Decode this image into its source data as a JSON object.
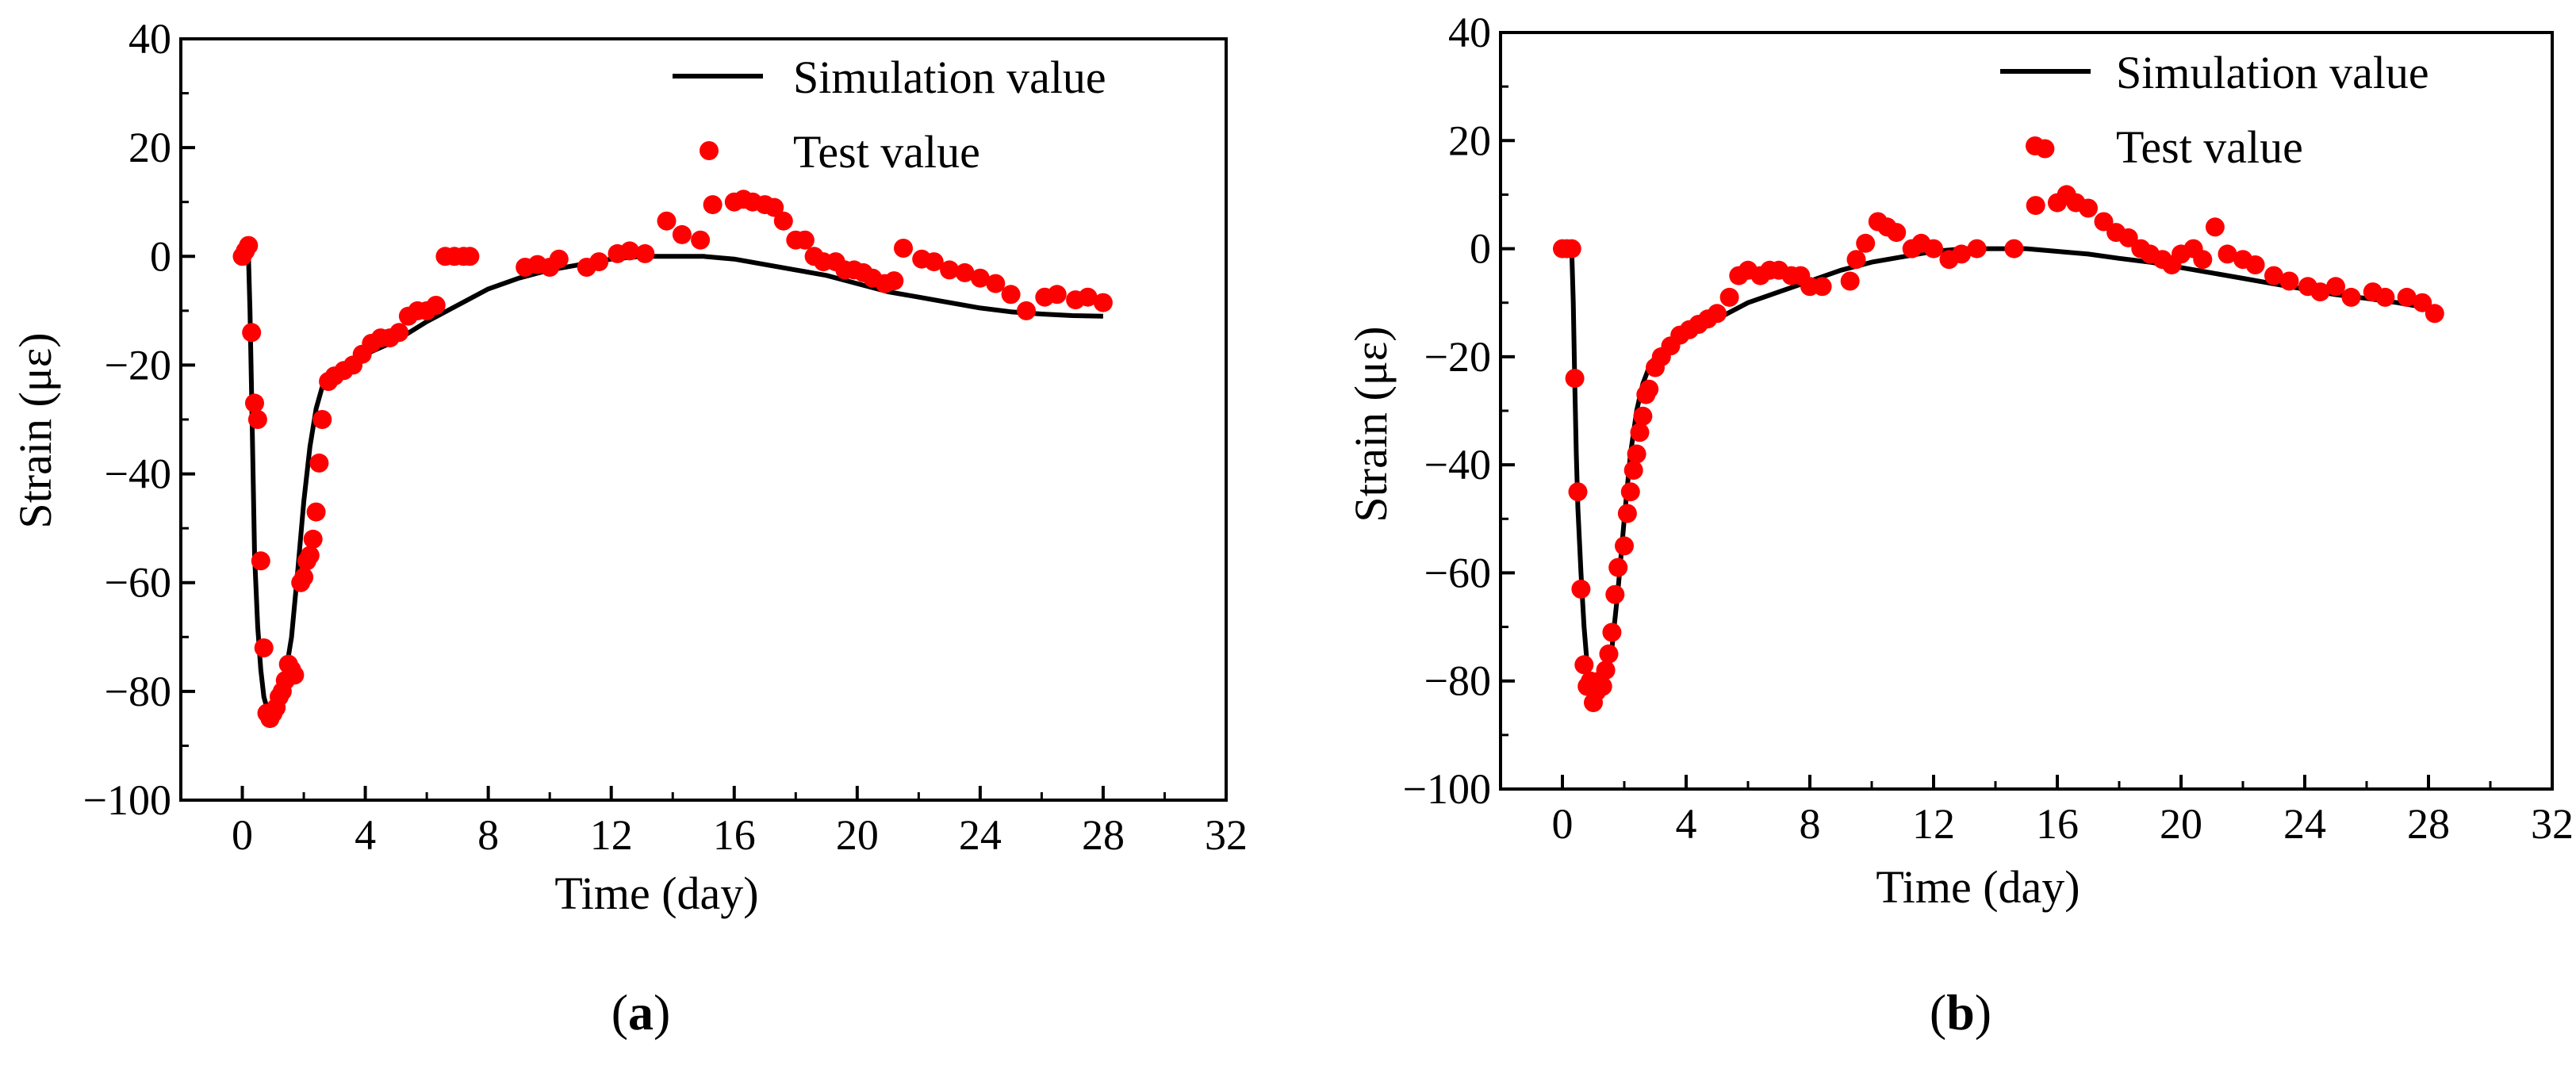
{
  "colors": {
    "simulation": "#000000",
    "test": "#ff0000",
    "axis": "#000000"
  },
  "chart_data": [
    {
      "type": "line+scatter",
      "panel_label": {
        "open": "(",
        "letter": "a",
        "close": ")"
      },
      "xlabel": "Time (day)",
      "ylabel": "Strain (με)",
      "xlim": [
        -2,
        32
      ],
      "ylim": [
        -100,
        40
      ],
      "xticks": [
        0,
        4,
        8,
        12,
        16,
        20,
        24,
        28,
        32
      ],
      "yticks": [
        40,
        20,
        0,
        -20,
        -40,
        -60,
        -80,
        -100
      ],
      "ytick_labels": [
        "40",
        "20",
        "0",
        "−20",
        "−40",
        "−60",
        "−80",
        "−100"
      ],
      "legend": {
        "position": "top-right",
        "entries": [
          "Simulation value",
          "Test value"
        ]
      },
      "series": [
        {
          "name": "Simulation value",
          "kind": "line",
          "x": [
            0.2,
            0.25,
            0.3,
            0.35,
            0.4,
            0.5,
            0.6,
            0.7,
            0.8,
            0.9,
            1.0,
            1.2,
            1.4,
            1.6,
            1.8,
            2.0,
            2.2,
            2.4,
            2.6,
            2.8,
            3.0,
            3.5,
            4.0,
            5.0,
            6.0,
            7.0,
            8.0,
            9.0,
            10.0,
            11.0,
            12.0,
            13.0,
            14.0,
            15.0,
            16.0,
            17.0,
            18.0,
            19.0,
            20.0,
            21.0,
            22.0,
            23.0,
            24.0,
            25.0,
            26.0,
            27.0,
            28.0
          ],
          "y": [
            0,
            -10,
            -25,
            -40,
            -55,
            -68,
            -76,
            -81,
            -83,
            -83.5,
            -83,
            -81,
            -77,
            -70,
            -58,
            -45,
            -35,
            -28,
            -24,
            -22,
            -21,
            -19.5,
            -18,
            -15.5,
            -12,
            -9,
            -6,
            -4,
            -2.5,
            -1.5,
            -0.5,
            0,
            0,
            0,
            -0.5,
            -1.5,
            -2.5,
            -3.5,
            -5,
            -6.5,
            -7.5,
            -8.5,
            -9.5,
            -10.2,
            -10.6,
            -10.9,
            -11
          ]
        },
        {
          "name": "Test value",
          "kind": "scatter",
          "x": [
            0,
            0.1,
            0.2,
            0.3,
            0.4,
            0.5,
            0.6,
            0.7,
            0.8,
            0.9,
            1.0,
            1.1,
            1.2,
            1.3,
            1.4,
            1.5,
            1.6,
            1.7,
            1.9,
            2.0,
            2.1,
            2.2,
            2.3,
            2.4,
            2.5,
            2.6,
            2.8,
            3.0,
            3.3,
            3.6,
            3.9,
            4.2,
            4.5,
            4.8,
            5.1,
            5.4,
            5.7,
            6.0,
            6.3,
            6.6,
            6.9,
            7.2,
            7.4,
            9.2,
            9.6,
            10.0,
            10.3,
            11.2,
            11.6,
            12.2,
            12.6,
            13.1,
            13.8,
            14.3,
            14.9,
            15.3,
            16.0,
            16.3,
            16.6,
            17.0,
            17.3,
            17.6,
            18.0,
            18.3,
            18.6,
            18.9,
            19.3,
            19.6,
            19.9,
            20.2,
            20.5,
            20.9,
            21.2,
            21.5,
            22.1,
            22.5,
            23.0,
            23.5,
            24.0,
            24.5,
            25.0,
            25.5,
            26.1,
            26.5,
            27.1,
            27.5,
            28.0
          ],
          "y": [
            0,
            1,
            2,
            -14,
            -27,
            -30,
            -56,
            -72,
            -84,
            -85,
            -84,
            -83,
            -81,
            -80,
            -78,
            -75,
            -76,
            -77,
            -60,
            -59,
            -56,
            -55,
            -52,
            -47,
            -38,
            -30,
            -23,
            -22,
            -21,
            -20,
            -18,
            -16,
            -15,
            -15,
            -14,
            -11,
            -10,
            -10,
            -9,
            0,
            0,
            0,
            0,
            -2,
            -1.5,
            -2,
            -0.5,
            -2,
            -1,
            0.5,
            1,
            0.5,
            6.5,
            4,
            3,
            9.5,
            10,
            10.5,
            10,
            9.5,
            9,
            6.5,
            3,
            3,
            0,
            -1,
            -1,
            -2.5,
            -2.5,
            -3,
            -4,
            -5,
            -4.5,
            1.5,
            -0.5,
            -1,
            -2.5,
            -3,
            -4,
            -5,
            -7,
            -10,
            -7.5,
            -7,
            -8,
            -7.5,
            -8.5
          ]
        }
      ]
    },
    {
      "type": "line+scatter",
      "panel_label": {
        "open": "(",
        "letter": "b",
        "close": ")"
      },
      "xlabel": "Time (day)",
      "ylabel": "Strain (με)",
      "xlim": [
        -2,
        32
      ],
      "ylim": [
        -100,
        40
      ],
      "xticks": [
        0,
        4,
        8,
        12,
        16,
        20,
        24,
        28,
        32
      ],
      "yticks": [
        40,
        20,
        0,
        -20,
        -40,
        -60,
        -80,
        -100
      ],
      "ytick_labels": [
        "40",
        "20",
        "0",
        "−20",
        "−40",
        "−60",
        "−80",
        "−100"
      ],
      "legend": {
        "position": "top-right",
        "entries": [
          "Simulation value",
          "Test value"
        ]
      },
      "series": [
        {
          "name": "Simulation value",
          "kind": "line",
          "x": [
            0.3,
            0.35,
            0.4,
            0.45,
            0.5,
            0.6,
            0.7,
            0.8,
            0.9,
            1.0,
            1.1,
            1.2,
            1.4,
            1.6,
            1.8,
            2.0,
            2.2,
            2.4,
            2.6,
            2.8,
            3.0,
            3.5,
            4.0,
            5.0,
            6.0,
            7.0,
            8.0,
            9.0,
            10.0,
            11.0,
            12.0,
            13.0,
            14.0,
            15.0,
            16.0,
            17.0,
            18.0,
            19.0,
            20.0,
            21.0,
            22.0,
            23.0,
            24.0,
            25.0,
            26.0,
            27.0,
            28.0
          ],
          "y": [
            0,
            -10,
            -25,
            -38,
            -48,
            -60,
            -70,
            -77,
            -81,
            -83,
            -83.5,
            -83,
            -80,
            -74,
            -63,
            -50,
            -38,
            -30,
            -25,
            -22,
            -20,
            -18,
            -16,
            -13,
            -10,
            -8,
            -6,
            -4,
            -2.5,
            -1.5,
            -0.5,
            0,
            0,
            0,
            -0.5,
            -1,
            -1.8,
            -2.5,
            -3.5,
            -4.5,
            -5.5,
            -6.5,
            -7.5,
            -8.5,
            -9.2,
            -10,
            -11
          ]
        },
        {
          "name": "Test value",
          "kind": "scatter",
          "x": [
            0,
            0.15,
            0.3,
            0.4,
            0.5,
            0.6,
            0.7,
            0.8,
            0.9,
            1.0,
            1.1,
            1.2,
            1.3,
            1.4,
            1.5,
            1.6,
            1.7,
            1.8,
            2.0,
            2.1,
            2.2,
            2.3,
            2.4,
            2.5,
            2.6,
            2.7,
            2.8,
            3.0,
            3.2,
            3.5,
            3.8,
            4.1,
            4.4,
            4.7,
            5.0,
            5.4,
            5.7,
            6.0,
            6.4,
            6.7,
            7.0,
            7.4,
            7.7,
            8.0,
            8.4,
            9.3,
            9.5,
            9.8,
            10.2,
            10.5,
            10.8,
            11.3,
            11.6,
            12.0,
            12.5,
            12.9,
            13.4,
            14.6,
            15.3,
            15.6,
            16.0,
            16.3,
            16.6,
            17.0,
            17.5,
            17.9,
            18.3,
            18.7,
            19.0,
            19.4,
            19.7,
            20.0,
            20.4,
            20.7,
            21.1,
            21.5,
            22.0,
            22.4,
            23.0,
            23.5,
            24.1,
            24.5,
            25.0,
            25.5,
            26.2,
            26.6,
            27.3,
            27.8,
            28.2
          ],
          "y": [
            0,
            0,
            0,
            -24,
            -45,
            -63,
            -77,
            -81,
            -80,
            -84,
            -82,
            -80,
            -81,
            -78,
            -75,
            -71,
            -64,
            -59,
            -55,
            -49,
            -45,
            -41,
            -38,
            -34,
            -31,
            -27,
            -26,
            -22,
            -20,
            -18,
            -16,
            -15,
            -14,
            -13,
            -12,
            -9,
            -5,
            -4,
            -5,
            -4,
            -4,
            -5,
            -5,
            -7,
            -7,
            -6,
            -2,
            1,
            5,
            4,
            3,
            0,
            1,
            0,
            -2,
            -1,
            0,
            0,
            8,
            18.5,
            8.5,
            10,
            8.5,
            7.5,
            5,
            3,
            2,
            0,
            -1,
            -2,
            -3,
            -1,
            0,
            -2,
            4,
            -1,
            -2,
            -3,
            -5,
            -6,
            -7,
            -8,
            -7,
            -9,
            -8,
            -9,
            -9,
            -10,
            -12
          ]
        }
      ]
    }
  ]
}
